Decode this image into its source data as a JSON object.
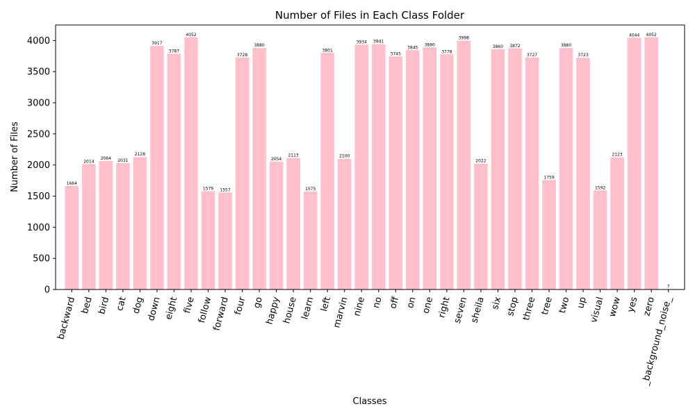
{
  "chart_data": {
    "type": "bar",
    "title": "Number of Files in Each Class Folder",
    "xlabel": "Classes",
    "ylabel": "Number of Files",
    "ylim": [
      0,
      4250
    ],
    "yticks": [
      0,
      500,
      1000,
      1500,
      2000,
      2500,
      3000,
      3500,
      4000
    ],
    "bar_color": "#ffc0cb",
    "categories": [
      "backward",
      "bed",
      "bird",
      "cat",
      "dog",
      "down",
      "eight",
      "five",
      "follow",
      "forward",
      "four",
      "go",
      "happy",
      "house",
      "learn",
      "left",
      "marvin",
      "nine",
      "no",
      "off",
      "on",
      "one",
      "right",
      "seven",
      "sheila",
      "six",
      "stop",
      "three",
      "tree",
      "two",
      "up",
      "visual",
      "wow",
      "yes",
      "zero",
      "_background_noise_"
    ],
    "values": [
      1664,
      2014,
      2064,
      2031,
      2128,
      3917,
      3787,
      4052,
      1579,
      1557,
      3728,
      3880,
      2054,
      2113,
      1575,
      3801,
      2100,
      3934,
      3941,
      3745,
      3845,
      3890,
      3778,
      3998,
      2022,
      3860,
      3872,
      3727,
      1759,
      3880,
      3723,
      1592,
      2123,
      4044,
      4052,
      7
    ],
    "grid": false,
    "legend": "none"
  }
}
